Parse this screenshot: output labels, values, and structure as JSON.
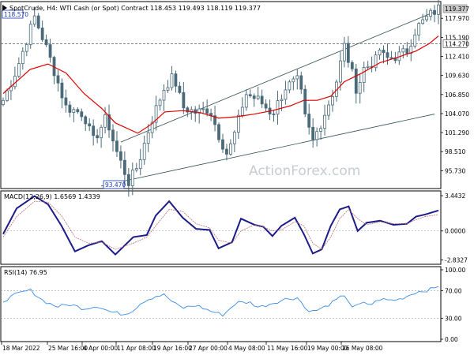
{
  "chart_data": [
    {
      "type": "candlestick",
      "title": "SpotCrude, H4:  WTI Cash (or Spot) Contract",
      "ohlc_readout": "118.453 119.493 118.119 119.377",
      "watermark": "ActionForex.com",
      "x_tick_labels": [
        "18 Mar 2022",
        "25 Mar 16:00",
        "4 Apr 00:00",
        "11 Apr 08:00",
        "19 Apr 16:00",
        "27 Apr 00:00",
        "4 May 08:00",
        "11 May 16:00",
        "19 May 00:00",
        "26 May 08:00"
      ],
      "y_tick_labels": [
        "117.970",
        "115.190",
        "112.410",
        "109.630",
        "106.850",
        "104.070",
        "101.290",
        "98.510",
        "95.730"
      ],
      "ylim": [
        93.0,
        121.4
      ],
      "price_tags": [
        {
          "label": "119.377",
          "value": 119.377,
          "kind": "current"
        },
        {
          "label": "114.270",
          "value": 114.27,
          "kind": "level"
        }
      ],
      "annotations": [
        {
          "label": "118.570",
          "value": 118.57,
          "at_index": 7
        },
        {
          "label": "93.470",
          "value": 93.47,
          "at_index": 28
        }
      ],
      "horizontal_line": 114.27,
      "channel": [
        {
          "from": {
            "i": 30,
            "v": 99.9
          },
          "to": {
            "i": 110,
            "v": 118.9
          }
        },
        {
          "from": {
            "i": 25,
            "v": 93.5
          },
          "to": {
            "i": 110,
            "v": 104.0
          }
        }
      ],
      "candle_count": 112,
      "close_path": [
        [
          0,
          106.0
        ],
        [
          3,
          110.5
        ],
        [
          7,
          118.2
        ],
        [
          10,
          113.0
        ],
        [
          14,
          105.0
        ],
        [
          18,
          104.0
        ],
        [
          20,
          100.0
        ],
        [
          23,
          103.5
        ],
        [
          25,
          99.0
        ],
        [
          28,
          94.0
        ],
        [
          30,
          96.5
        ],
        [
          33,
          103.0
        ],
        [
          36,
          108.0
        ],
        [
          38,
          109.5
        ],
        [
          40,
          105.0
        ],
        [
          43,
          104.2
        ],
        [
          46,
          104.8
        ],
        [
          48,
          101.0
        ],
        [
          50,
          98.0
        ],
        [
          52,
          102.0
        ],
        [
          54,
          107.0
        ],
        [
          57,
          106.0
        ],
        [
          60,
          104.0
        ],
        [
          63,
          108.0
        ],
        [
          66,
          109.0
        ],
        [
          67,
          104.0
        ],
        [
          69,
          100.0
        ],
        [
          71,
          103.0
        ],
        [
          74,
          108.0
        ],
        [
          76,
          114.0
        ],
        [
          79,
          107.0
        ],
        [
          80,
          110.5
        ],
        [
          83,
          111.8
        ],
        [
          84,
          113.6
        ],
        [
          85,
          112.0
        ],
        [
          88,
          112.5
        ],
        [
          90,
          113.2
        ],
        [
          92,
          116.5
        ],
        [
          95,
          118.4
        ],
        [
          97,
          119.4
        ]
      ],
      "moving_average": [
        [
          0,
          107.0
        ],
        [
          6,
          110.5
        ],
        [
          10,
          111.3
        ],
        [
          14,
          110.0
        ],
        [
          18,
          107.0
        ],
        [
          22,
          104.8
        ],
        [
          25,
          102.7
        ],
        [
          30,
          101.2
        ],
        [
          33,
          102.5
        ],
        [
          36,
          104.3
        ],
        [
          40,
          104.5
        ],
        [
          44,
          104.2
        ],
        [
          48,
          103.4
        ],
        [
          52,
          103.6
        ],
        [
          56,
          104.0
        ],
        [
          60,
          104.5
        ],
        [
          64,
          105.2
        ],
        [
          67,
          106.0
        ],
        [
          70,
          106.0
        ],
        [
          73,
          106.6
        ],
        [
          76,
          108.7
        ],
        [
          80,
          110.0
        ],
        [
          84,
          111.5
        ],
        [
          88,
          112.3
        ],
        [
          92,
          113.2
        ],
        [
          95,
          114.3
        ],
        [
          97,
          115.4
        ]
      ]
    },
    {
      "type": "line",
      "title": "MACD(12,26,9) 1.6569 1.4339",
      "y_tick_labels": [
        "3.4432",
        "0.0000",
        "-2.8327"
      ],
      "ylim": [
        -3.3,
        3.8
      ],
      "series": [
        {
          "values": [
            [
              0,
              -0.3
            ],
            [
              3,
              2.2
            ],
            [
              7,
              3.4
            ],
            [
              10,
              2.6
            ],
            [
              13,
              0.5
            ],
            [
              16,
              -2.0
            ],
            [
              19,
              -1.4
            ],
            [
              22,
              -1.0
            ],
            [
              25,
              -2.3
            ],
            [
              29,
              -0.6
            ],
            [
              32,
              -0.4
            ],
            [
              34,
              1.5
            ],
            [
              37,
              2.9
            ],
            [
              40,
              1.3
            ],
            [
              43,
              0.2
            ],
            [
              46,
              0.1
            ],
            [
              48,
              -1.7
            ],
            [
              51,
              -1.1
            ],
            [
              53,
              1.2
            ],
            [
              56,
              0.6
            ],
            [
              58,
              0.4
            ],
            [
              60,
              -0.5
            ],
            [
              62,
              0.5
            ],
            [
              65,
              1.3
            ],
            [
              67,
              -0.3
            ],
            [
              69,
              -2.2
            ],
            [
              71,
              -1.8
            ],
            [
              73,
              0.5
            ],
            [
              75,
              2.1
            ],
            [
              77,
              2.4
            ],
            [
              79,
              0.0
            ],
            [
              81,
              0.8
            ],
            [
              84,
              1.0
            ],
            [
              87,
              0.6
            ],
            [
              90,
              0.7
            ],
            [
              92,
              1.4
            ],
            [
              94,
              1.6
            ],
            [
              97,
              2.0
            ]
          ]
        },
        {
          "values": [
            [
              0,
              -0.6
            ],
            [
              3,
              1.4
            ],
            [
              7,
              2.9
            ],
            [
              10,
              2.8
            ],
            [
              13,
              1.5
            ],
            [
              16,
              -0.6
            ],
            [
              19,
              -1.2
            ],
            [
              22,
              -1.1
            ],
            [
              25,
              -1.8
            ],
            [
              29,
              -1.2
            ],
            [
              32,
              -0.6
            ],
            [
              34,
              0.5
            ],
            [
              37,
              2.1
            ],
            [
              40,
              1.9
            ],
            [
              43,
              0.7
            ],
            [
              46,
              0.3
            ],
            [
              48,
              -0.9
            ],
            [
              51,
              -1.2
            ],
            [
              53,
              0.0
            ],
            [
              56,
              0.6
            ],
            [
              58,
              0.4
            ],
            [
              60,
              0.0
            ],
            [
              62,
              0.1
            ],
            [
              65,
              0.9
            ],
            [
              67,
              0.5
            ],
            [
              69,
              -1.2
            ],
            [
              71,
              -1.8
            ],
            [
              73,
              -0.6
            ],
            [
              75,
              1.2
            ],
            [
              77,
              2.1
            ],
            [
              79,
              1.2
            ],
            [
              81,
              0.6
            ],
            [
              84,
              0.9
            ],
            [
              87,
              0.7
            ],
            [
              90,
              0.7
            ],
            [
              92,
              1.1
            ],
            [
              94,
              1.4
            ],
            [
              97,
              1.6
            ]
          ]
        }
      ]
    },
    {
      "type": "line",
      "title": "RSI(14) 76.95",
      "y_tick_labels": [
        "100.00",
        "70.00",
        "30.00",
        "0.00"
      ],
      "ylim": [
        0,
        100
      ],
      "levels": [
        70,
        30
      ],
      "series": [
        {
          "values": [
            [
              0,
              55
            ],
            [
              3,
              65
            ],
            [
              6,
              71
            ],
            [
              9,
              55
            ],
            [
              12,
              47
            ],
            [
              15,
              50
            ],
            [
              18,
              44
            ],
            [
              21,
              48
            ],
            [
              24,
              39
            ],
            [
              27,
              36
            ],
            [
              29,
              42
            ],
            [
              31,
              54
            ],
            [
              34,
              62
            ],
            [
              36,
              64
            ],
            [
              38,
              52
            ],
            [
              40,
              45
            ],
            [
              43,
              49
            ],
            [
              46,
              41
            ],
            [
              49,
              35
            ],
            [
              52,
              53
            ],
            [
              55,
              53
            ],
            [
              57,
              46
            ],
            [
              60,
              52
            ],
            [
              63,
              58
            ],
            [
              66,
              60
            ],
            [
              67,
              45
            ],
            [
              69,
              40
            ],
            [
              71,
              44
            ],
            [
              74,
              55
            ],
            [
              76,
              64
            ],
            [
              78,
              45
            ],
            [
              80,
              52
            ],
            [
              82,
              50
            ],
            [
              84,
              58
            ],
            [
              86,
              56
            ],
            [
              88,
              57
            ],
            [
              90,
              62
            ],
            [
              92,
              68
            ],
            [
              94,
              70
            ],
            [
              96,
              73
            ],
            [
              97,
              77
            ]
          ]
        }
      ]
    }
  ]
}
